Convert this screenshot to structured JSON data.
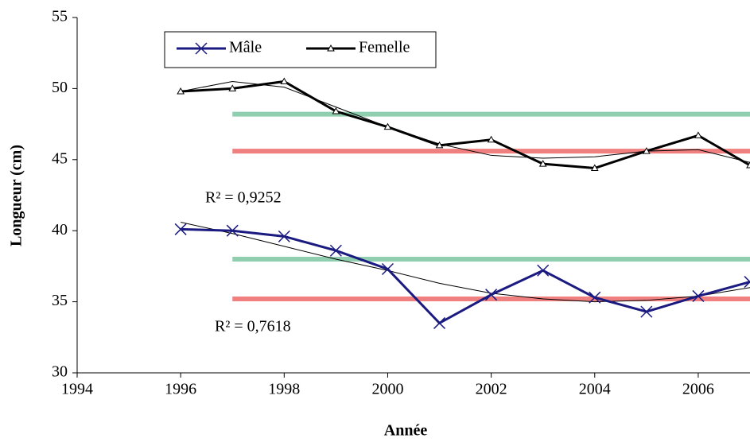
{
  "chart_data": {
    "type": "line",
    "x_label": "Année",
    "y_label": "Longueur (cm)",
    "x": [
      1996,
      1997,
      1998,
      1999,
      2000,
      2001,
      2002,
      2003,
      2004,
      2005,
      2006,
      2007
    ],
    "series": [
      {
        "name": "Mâle",
        "color": "#1a1a80",
        "marker": "x",
        "values": [
          40.1,
          40.0,
          39.6,
          38.6,
          37.3,
          33.5,
          35.5,
          37.2,
          35.3,
          34.3,
          35.4,
          36.4
        ]
      },
      {
        "name": "Femelle",
        "color": "#000000",
        "marker": "triangle",
        "values": [
          49.8,
          50.0,
          50.5,
          48.4,
          47.3,
          46.0,
          46.4,
          44.7,
          44.4,
          45.6,
          46.7,
          44.6
        ]
      }
    ],
    "trendlines": [
      {
        "color": "#000000",
        "annotation": "R² = 0,7618",
        "values": [
          40.6,
          39.8,
          38.9,
          38.0,
          37.2,
          36.3,
          35.6,
          35.2,
          35.0,
          35.1,
          35.4,
          36.0
        ]
      },
      {
        "color": "#000000",
        "annotation": "R² = 0,9252",
        "values": [
          49.8,
          50.5,
          50.1,
          48.7,
          47.3,
          46.1,
          45.3,
          45.1,
          45.2,
          45.6,
          45.7,
          44.8
        ]
      }
    ],
    "reference_lines": [
      {
        "y": 48.2,
        "from": 1997,
        "to": 2007,
        "color": "#8fcfb0"
      },
      {
        "y": 45.6,
        "from": 1997,
        "to": 2007,
        "color": "#f08080"
      },
      {
        "y": 38.0,
        "from": 1997,
        "to": 2007,
        "color": "#8fcfb0"
      },
      {
        "y": 35.2,
        "from": 1997,
        "to": 2007,
        "color": "#f08080"
      }
    ],
    "xlim": [
      1994,
      2007
    ],
    "xticks": [
      1994,
      1996,
      1998,
      2000,
      2002,
      2004,
      2006
    ],
    "ylim": [
      30,
      55
    ],
    "yticks": [
      30,
      35,
      40,
      45,
      50,
      55
    ],
    "grid": false
  }
}
